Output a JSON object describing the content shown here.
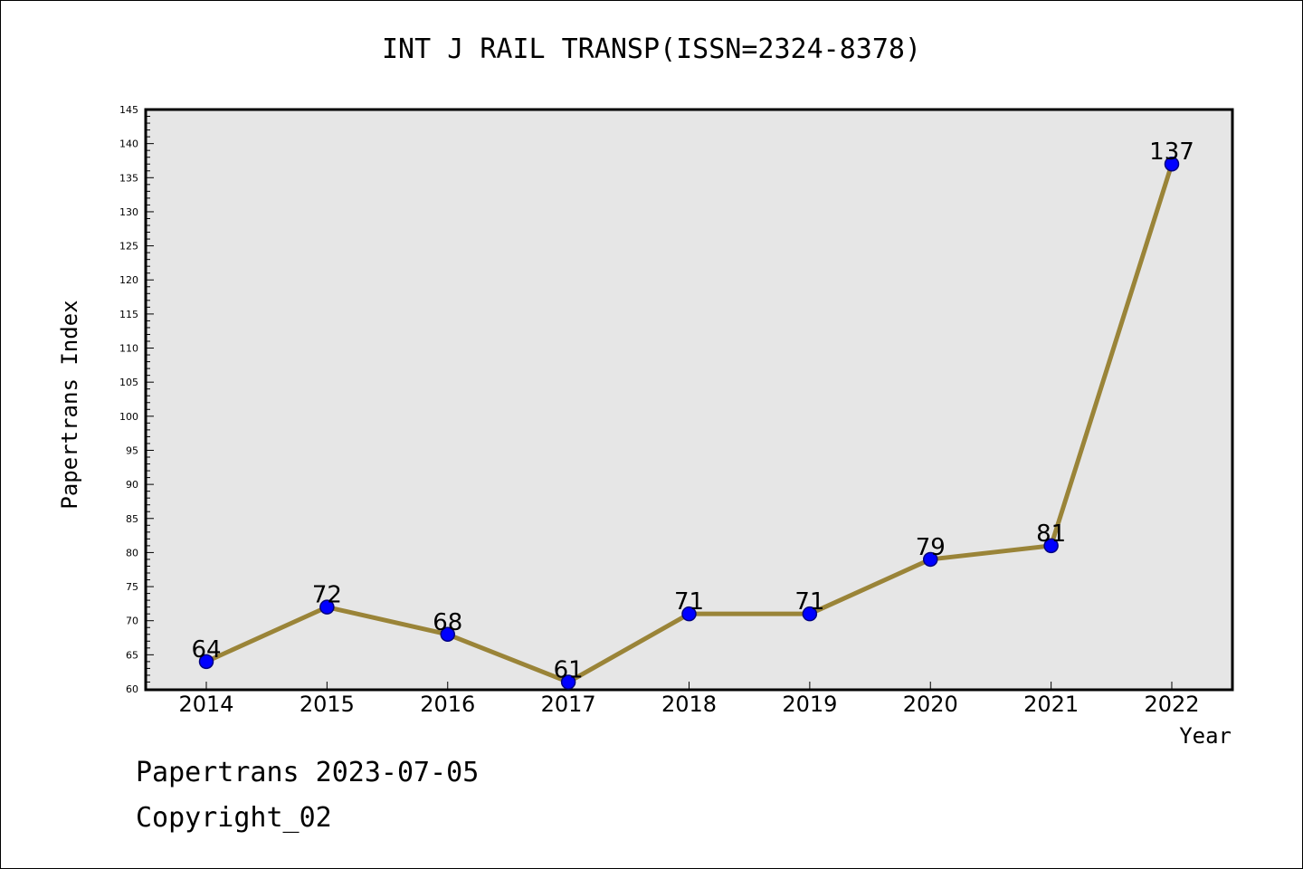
{
  "footer": {
    "line1": "Papertrans 2023-07-05",
    "line2": "Copyright_02"
  },
  "colors": {
    "plot_background": "#e6e6e6",
    "line": "#9a8438",
    "marker_fill": "#0000ff",
    "marker_stroke": "#000080"
  },
  "chart_data": {
    "type": "line",
    "title": "INT J RAIL TRANSP(ISSN=2324-8378)",
    "xlabel": "Year",
    "ylabel": "Papertrans Index",
    "ylim": [
      60,
      145
    ],
    "ytick_step": 5,
    "grid": false,
    "legend": "none",
    "x": [
      "2014",
      "2015",
      "2016",
      "2017",
      "2018",
      "2019",
      "2020",
      "2021",
      "2022"
    ],
    "series": [
      {
        "values": [
          64,
          72,
          68,
          61,
          71,
          71,
          79,
          81,
          137
        ]
      }
    ]
  }
}
